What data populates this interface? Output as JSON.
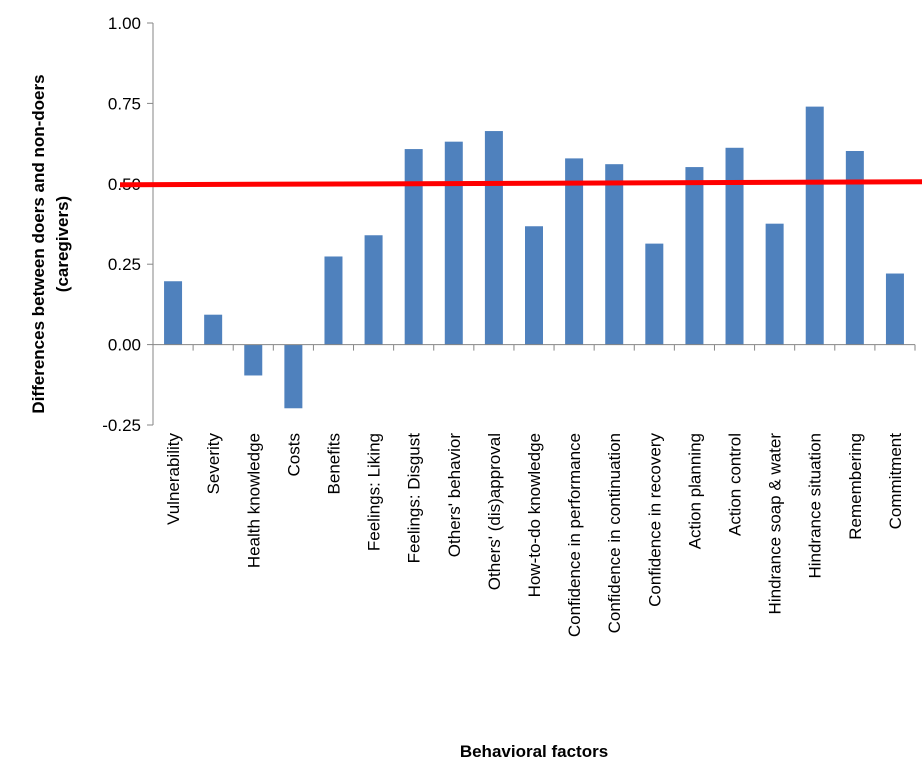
{
  "chart_data": {
    "type": "bar",
    "categories": [
      "Vulnerability",
      "Severity",
      "Health knowledge",
      "Costs",
      "Benefits",
      "Feelings: Liking",
      "Feelings: Disgust",
      "Others' behavior",
      "Others' (dis)approval",
      "How-to-do knowledge",
      "Confidence in performance",
      "Confidence in continuation",
      "Confidence in recovery",
      "Action planning",
      "Action control",
      "Hindrance soap & water",
      "Hindrance situation",
      "Remembering",
      "Commitment"
    ],
    "values": [
      0.197,
      0.093,
      -0.096,
      -0.198,
      0.274,
      0.34,
      0.608,
      0.631,
      0.664,
      0.368,
      0.579,
      0.561,
      0.314,
      0.552,
      0.612,
      0.376,
      0.74,
      0.602,
      0.221
    ],
    "bar_color": "#4F81BD",
    "reference_line": {
      "value": 0.5,
      "color": "#FF0000"
    },
    "xlabel": "Behavioral factors",
    "ylabel": "Differences between doers and non-doers (caregivers)",
    "ylim": [
      -0.25,
      1.0
    ],
    "yticks": [
      "-0.25",
      "0.00",
      "0.25",
      "0.50",
      "0.75",
      "1.00"
    ],
    "ytick_values": [
      -0.25,
      0,
      0.25,
      0.5,
      0.75,
      1.0
    ],
    "grid": false,
    "legend": "none"
  }
}
